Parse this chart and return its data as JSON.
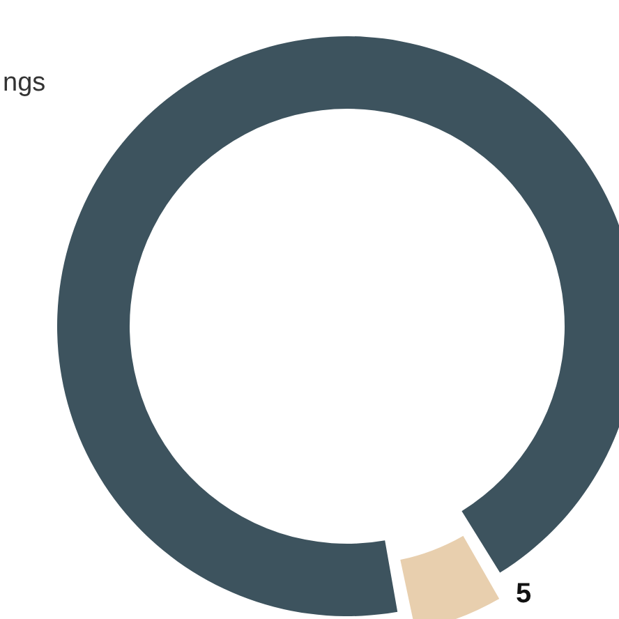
{
  "chart_data": {
    "type": "donut",
    "categories": [
      "ngs",
      null
    ],
    "values": [
      95,
      5
    ],
    "colors": [
      "#3d535e",
      "#e8cfae"
    ],
    "value_labels": [
      null,
      "5"
    ]
  }
}
